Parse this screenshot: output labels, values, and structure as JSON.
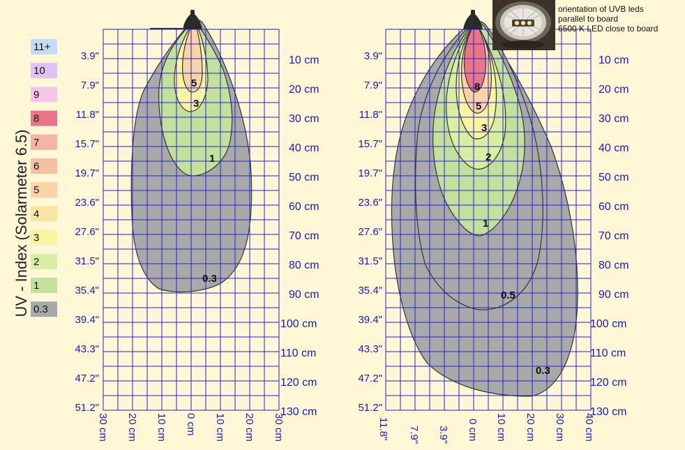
{
  "legend": {
    "title": "UV - Index (Solarmeter 6.5)",
    "items": [
      {
        "label": "11+",
        "color": "#c5dcf5"
      },
      {
        "label": "10",
        "color": "#e1c2f4"
      },
      {
        "label": "9",
        "color": "#f6c6ea"
      },
      {
        "label": "8",
        "color": "#e8758a"
      },
      {
        "label": "7",
        "color": "#f4b4a6"
      },
      {
        "label": "6",
        "color": "#f6c0a4"
      },
      {
        "label": "5",
        "color": "#f8d4a6"
      },
      {
        "label": "4",
        "color": "#f9e4a6"
      },
      {
        "label": "3",
        "color": "#f9f4a2"
      },
      {
        "label": "2",
        "color": "#d9eea2"
      },
      {
        "label": "1",
        "color": "#c4e09d"
      },
      {
        "label": "0.3",
        "color": "#a9a9a9"
      }
    ]
  },
  "colors": {
    "grid": "#2222cc",
    "axis_text": "#1a1ab8",
    "background": "#fff7d6"
  },
  "inch_labels": [
    "3.9\"",
    "7.9\"",
    "11.8\"",
    "15.7\"",
    "19.7\"",
    "23.6\"",
    "27.6\"",
    "31.5\"",
    "35.4\"",
    "39.4\"",
    "43.3\"",
    "47.2\"",
    "51.2\""
  ],
  "cm_labels": [
    "10 cm",
    "20 cm",
    "30 cm",
    "40 cm",
    "50 cm",
    "60 cm",
    "70 cm",
    "80 cm",
    "90 cm",
    "100 cm",
    "110 cm",
    "120 cm",
    "130 cm"
  ],
  "chart_left": {
    "bottom_labels": [
      "30 cm",
      "20 cm",
      "10 cm",
      "0 cm",
      "10 cm",
      "20 cm",
      "30 cm"
    ],
    "contours": [
      {
        "label": "0.3",
        "color": "#a9a9a9"
      },
      {
        "label": "1",
        "color": "#c4e09d"
      },
      {
        "label": "3",
        "color": "#f9f4a2"
      },
      {
        "label": "5",
        "color": "#f8d4a6"
      }
    ]
  },
  "chart_right": {
    "bottom_labels": [
      "11.8\"",
      "7.9\"",
      "3.9\"",
      "0 cm",
      "10 cm",
      "20 cm",
      "30 cm",
      "40 cm"
    ],
    "contours": [
      {
        "label": "0.3",
        "color": "#a9a9a9"
      },
      {
        "label": "0.5",
        "color": "#a9a9a9"
      },
      {
        "label": "1",
        "color": "#c4e09d"
      },
      {
        "label": "2",
        "color": "#d9eea2"
      },
      {
        "label": "3",
        "color": "#f9f4a2"
      },
      {
        "label": "5",
        "color": "#f8d4a6"
      },
      {
        "label": "8",
        "color": "#e8758a"
      }
    ]
  },
  "photo_caption": [
    "orientation of UVB leds",
    "parallel to board",
    "6500 K LED close to board"
  ]
}
